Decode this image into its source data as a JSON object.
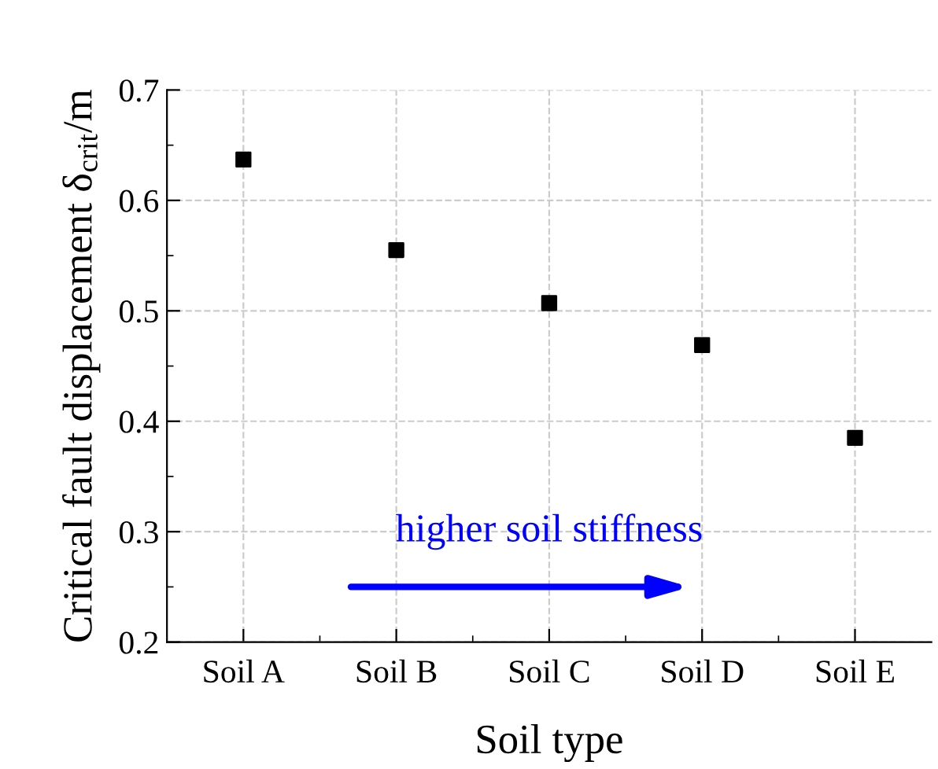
{
  "chart_data": {
    "type": "scatter",
    "xlabel": "Soil type",
    "ylabel": "Critical fault displacement δ$_{crit}$/m",
    "categories": [
      "Soil A",
      "Soil B",
      "Soil C",
      "Soil D",
      "Soil E"
    ],
    "series": [
      {
        "color": "#000000",
        "values": [
          0.637,
          0.555,
          0.507,
          0.469,
          0.385
        ]
      }
    ],
    "marker": "square",
    "ylim": [
      0.2,
      0.7
    ],
    "yticks": [
      0.2,
      0.3,
      0.4,
      0.5,
      0.6,
      0.7
    ],
    "grid": true,
    "annotations": [
      "higher soil stiffness"
    ]
  }
}
